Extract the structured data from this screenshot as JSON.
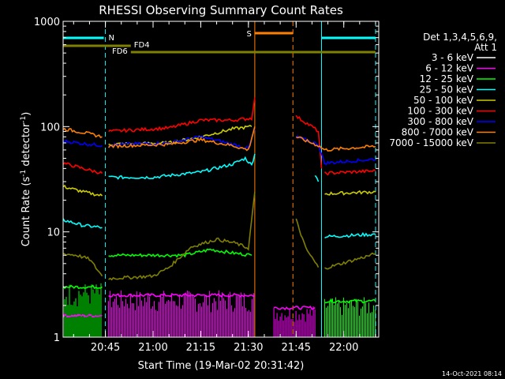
{
  "chart_data": {
    "type": "line",
    "title": "RHESSI Observing Summary Count Rates",
    "xlabel": "Start Time (19-Mar-02 20:31:42)",
    "ylabel": "Count Rate (s",
    "ylabel_sup": "-1",
    "ylabel_mid": " detector",
    "ylabel_sup2": "-1",
    "ylabel_end": ")",
    "y_scale": "log",
    "ylim": [
      1,
      1000
    ],
    "xlim": [
      "20:31:42",
      "22:11:00"
    ],
    "x_ticks": [
      "20:45",
      "21:00",
      "21:15",
      "21:30",
      "21:45",
      "22:00"
    ],
    "y_ticks": [
      "1",
      "10",
      "100",
      "1000"
    ],
    "footer_date": "14-Oct-2021 08:14",
    "legend": {
      "header1": "Det 1,3,4,5,6,9,",
      "header2": "Att 1",
      "placement": "right"
    },
    "flags": [
      {
        "label": "N",
        "color": "#00ffff"
      },
      {
        "label": "S",
        "color": "#ff8000"
      },
      {
        "label": "FD4",
        "color": "#808000"
      },
      {
        "label": "FD6",
        "color": "#808000"
      }
    ],
    "series": [
      {
        "name": "3 - 6 keV",
        "color": "#ffffff"
      },
      {
        "name": "6 - 12 keV",
        "color": "#ff00ff"
      },
      {
        "name": "12 - 25 keV",
        "color": "#00ff00"
      },
      {
        "name": "25 - 50 keV",
        "color": "#00ffff"
      },
      {
        "name": "50 - 100 keV",
        "color": "#cccc00"
      },
      {
        "name": "100 - 300 keV",
        "color": "#ff0000"
      },
      {
        "name": "300 - 800 keV",
        "color": "#0000ff"
      },
      {
        "name": "800 - 7000 keV",
        "color": "#ff8000"
      },
      {
        "name": "7000 - 15000 keV",
        "color": "#808000"
      }
    ],
    "segments": [
      {
        "color": "#ff00ff",
        "points": [
          [
            "20:31:42",
            1.6
          ],
          [
            "20:44",
            1.6
          ]
        ]
      },
      {
        "color": "#ff00ff",
        "points": [
          [
            "20:46",
            2.5
          ],
          [
            "21:32",
            2.5
          ]
        ]
      },
      {
        "color": "#ff00ff",
        "points": [
          [
            "21:38",
            1.9
          ],
          [
            "21:51",
            1.9
          ]
        ]
      },
      {
        "color": "#00ff00",
        "points": [
          [
            "20:31:42",
            3.0
          ],
          [
            "20:44",
            3.0
          ]
        ]
      },
      {
        "color": "#00ff00",
        "points": [
          [
            "20:46",
            6.0
          ],
          [
            "21:10",
            6.0
          ],
          [
            "21:18",
            6.8
          ],
          [
            "21:25",
            6.3
          ],
          [
            "21:31",
            6.0
          ]
        ]
      },
      {
        "color": "#00ff00",
        "points": [
          [
            "21:54",
            2.2
          ],
          [
            "22:10",
            2.2
          ]
        ]
      },
      {
        "color": "#00ffff",
        "points": [
          [
            "20:31:42",
            13
          ],
          [
            "20:38",
            11.5
          ],
          [
            "20:44",
            11
          ]
        ]
      },
      {
        "color": "#00ffff",
        "points": [
          [
            "20:46",
            33
          ],
          [
            "21:00",
            33
          ],
          [
            "21:15",
            37
          ],
          [
            "21:25",
            44
          ],
          [
            "21:29",
            50
          ],
          [
            "21:31",
            43
          ],
          [
            "21:32",
            55
          ]
        ]
      },
      {
        "color": "#00ffff",
        "points": [
          [
            "21:51",
            35
          ],
          [
            "21:52",
            30
          ]
        ]
      },
      {
        "color": "#00ffff",
        "points": [
          [
            "21:54",
            9
          ],
          [
            "22:10",
            9.5
          ]
        ]
      },
      {
        "color": "#cccc00",
        "points": [
          [
            "20:31:42",
            27
          ],
          [
            "20:38",
            24
          ],
          [
            "20:44",
            22
          ]
        ]
      },
      {
        "color": "#cccc00",
        "points": [
          [
            "20:46",
            68
          ],
          [
            "21:05",
            70
          ],
          [
            "21:15",
            80
          ],
          [
            "21:25",
            95
          ],
          [
            "21:31",
            100
          ]
        ]
      },
      {
        "color": "#cccc00",
        "points": [
          [
            "21:54",
            23
          ],
          [
            "22:10",
            24
          ]
        ]
      },
      {
        "color": "#ff0000",
        "points": [
          [
            "20:31:42",
            45
          ],
          [
            "20:38",
            40
          ],
          [
            "20:44",
            36
          ]
        ]
      },
      {
        "color": "#ff0000",
        "points": [
          [
            "20:46",
            90
          ],
          [
            "21:05",
            97
          ],
          [
            "21:15",
            115
          ],
          [
            "21:25",
            115
          ],
          [
            "21:31",
            120
          ],
          [
            "21:32",
            190
          ]
        ]
      },
      {
        "color": "#ff0000",
        "points": [
          [
            "21:45",
            125
          ],
          [
            "21:50",
            100
          ],
          [
            "21:52",
            90
          ],
          [
            "21:53",
            40
          ]
        ]
      },
      {
        "color": "#ff0000",
        "points": [
          [
            "21:54",
            36
          ],
          [
            "22:10",
            38
          ]
        ]
      },
      {
        "color": "#0000ff",
        "points": [
          [
            "20:31:42",
            73
          ],
          [
            "20:38",
            69
          ],
          [
            "20:44",
            66
          ]
        ]
      },
      {
        "color": "#0000ff",
        "points": [
          [
            "20:46",
            67
          ],
          [
            "21:05",
            70
          ],
          [
            "21:15",
            80
          ],
          [
            "21:25",
            68
          ],
          [
            "21:30",
            62
          ],
          [
            "21:32",
            95
          ]
        ]
      },
      {
        "color": "#0000ff",
        "points": [
          [
            "21:45",
            80
          ],
          [
            "21:52",
            68
          ],
          [
            "21:54",
            44
          ]
        ]
      },
      {
        "color": "#0000ff",
        "points": [
          [
            "21:54",
            45
          ],
          [
            "22:10",
            49
          ]
        ]
      },
      {
        "color": "#ff8000",
        "points": [
          [
            "20:31:42",
            95
          ],
          [
            "20:38",
            88
          ],
          [
            "20:44",
            80
          ]
        ]
      },
      {
        "color": "#ff8000",
        "points": [
          [
            "20:46",
            65
          ],
          [
            "21:05",
            68
          ],
          [
            "21:15",
            75
          ],
          [
            "21:25",
            66
          ],
          [
            "21:30",
            60
          ],
          [
            "21:32",
            100
          ]
        ]
      },
      {
        "color": "#ff8000",
        "points": [
          [
            "21:45",
            80
          ],
          [
            "21:52",
            66
          ],
          [
            "21:54",
            60
          ]
        ]
      },
      {
        "color": "#ff8000",
        "points": [
          [
            "21:54",
            60
          ],
          [
            "22:10",
            65
          ]
        ]
      },
      {
        "color": "#808000",
        "points": [
          [
            "20:31:42",
            6.2
          ],
          [
            "20:36",
            6.0
          ],
          [
            "20:40",
            5.5
          ],
          [
            "20:44",
            3.8
          ]
        ]
      },
      {
        "color": "#808000",
        "points": [
          [
            "20:46",
            3.6
          ],
          [
            "21:00",
            3.8
          ],
          [
            "21:05",
            4.6
          ],
          [
            "21:12",
            7.2
          ],
          [
            "21:20",
            8.5
          ],
          [
            "21:26",
            7.8
          ],
          [
            "21:30",
            7.0
          ],
          [
            "21:32",
            24
          ]
        ]
      },
      {
        "color": "#808000",
        "points": [
          [
            "21:45",
            13
          ],
          [
            "21:48",
            7
          ],
          [
            "21:52",
            4.6
          ]
        ]
      },
      {
        "color": "#808000",
        "points": [
          [
            "21:54",
            4.5
          ],
          [
            "22:10",
            6.2
          ]
        ]
      }
    ],
    "fill_noise": [
      {
        "color": "#ff00ff",
        "x1": "20:31:42",
        "x2": "20:44",
        "ymax": 1.8
      },
      {
        "color": "#ff00ff",
        "x1": "20:46",
        "x2": "21:32",
        "ymax": 2.8
      },
      {
        "color": "#ff00ff",
        "x1": "21:38",
        "x2": "21:51",
        "ymax": 2.0
      },
      {
        "color": "#00ff00",
        "x1": "20:31:42",
        "x2": "20:44",
        "ymax": 3.3
      },
      {
        "color": "#00ff00",
        "x1": "21:54",
        "x2": "22:10",
        "ymax": 2.4
      }
    ],
    "vlines": [
      {
        "x": "20:31:42",
        "color": "#00ffff",
        "style": "solid"
      },
      {
        "x": "20:45",
        "color": "#00ffff",
        "style": "dashed"
      },
      {
        "x": "21:32",
        "color": "#ff8000",
        "style": "solid"
      },
      {
        "x": "21:44",
        "color": "#ff8000",
        "style": "dashed"
      },
      {
        "x": "21:53",
        "color": "#00ffff",
        "style": "solid"
      },
      {
        "x": "22:10",
        "color": "#00ffff",
        "style": "dashed"
      }
    ],
    "flag_bars": [
      {
        "label_index": 0,
        "x1": "20:31:42",
        "x2": "20:44:30",
        "y": 48,
        "color": "#00ffff"
      },
      {
        "label_index": 0,
        "x1": "21:53",
        "x2": "22:10",
        "y": 48,
        "color": "#00ffff"
      },
      {
        "label_index": 1,
        "x1": "21:32",
        "x2": "21:44",
        "y": 42,
        "color": "#ff8000"
      },
      {
        "label_index": 2,
        "x1": "20:31:42",
        "x2": "20:53",
        "y": 58,
        "color": "#808000"
      },
      {
        "label_index": 3,
        "x1": "20:53",
        "x2": "22:10",
        "y": 66,
        "color": "#808000"
      }
    ]
  }
}
